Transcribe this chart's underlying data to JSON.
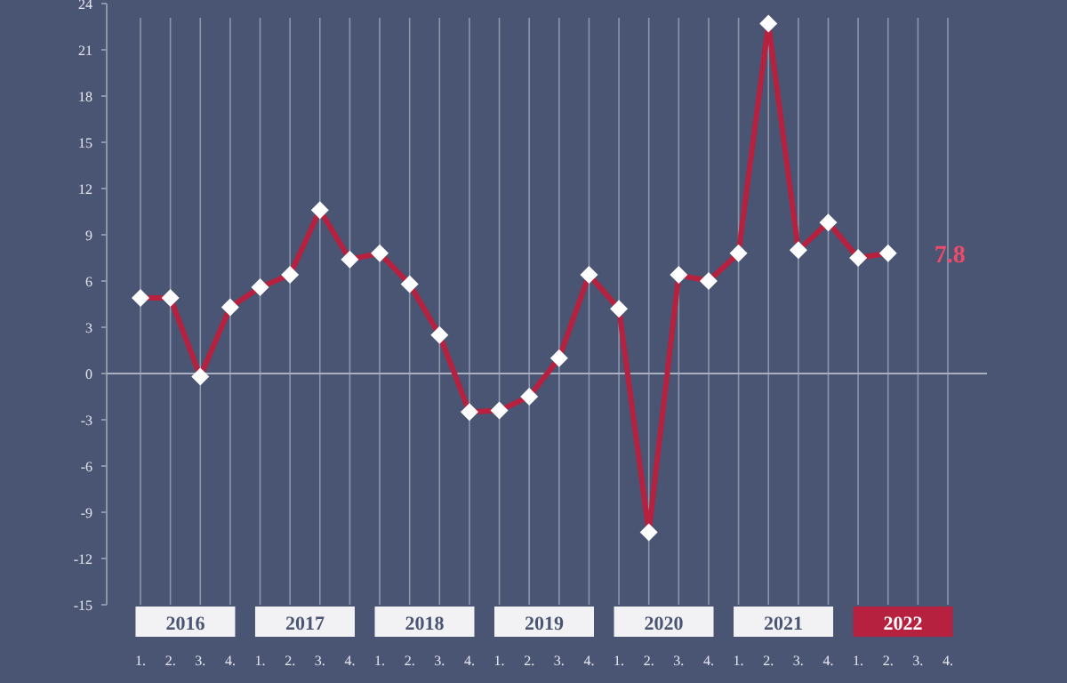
{
  "chart_data": {
    "type": "line",
    "categories": [
      "1.",
      "2.",
      "3.",
      "4.",
      "1.",
      "2.",
      "3.",
      "4.",
      "1.",
      "2.",
      "3.",
      "4.",
      "1.",
      "2.",
      "3.",
      "4.",
      "1.",
      "2.",
      "3.",
      "4.",
      "1.",
      "2.",
      "3.",
      "4.",
      "1.",
      "2.",
      "3.",
      "4."
    ],
    "series": [
      {
        "color": "#b5213f",
        "values": [
          4.9,
          4.9,
          -0.2,
          4.3,
          5.6,
          6.4,
          10.6,
          7.4,
          7.8,
          5.8,
          2.5,
          -2.5,
          -2.4,
          -1.5,
          1.0,
          6.4,
          4.2,
          -10.3,
          6.4,
          6.0,
          7.8,
          22.7,
          8.0,
          9.8,
          7.5,
          7.8,
          null,
          null
        ]
      }
    ],
    "ylim": [
      -15,
      24
    ],
    "yticks": [
      -15,
      -12,
      -9,
      -6,
      -3,
      0,
      3,
      6,
      9,
      12,
      15,
      18,
      21,
      24
    ],
    "annotations": [
      "2016",
      "2017",
      "2018",
      "2019",
      "2020",
      "2021",
      "2022",
      "7.8"
    ],
    "marker": "diamond",
    "line_style": "solid",
    "grid": "x"
  }
}
